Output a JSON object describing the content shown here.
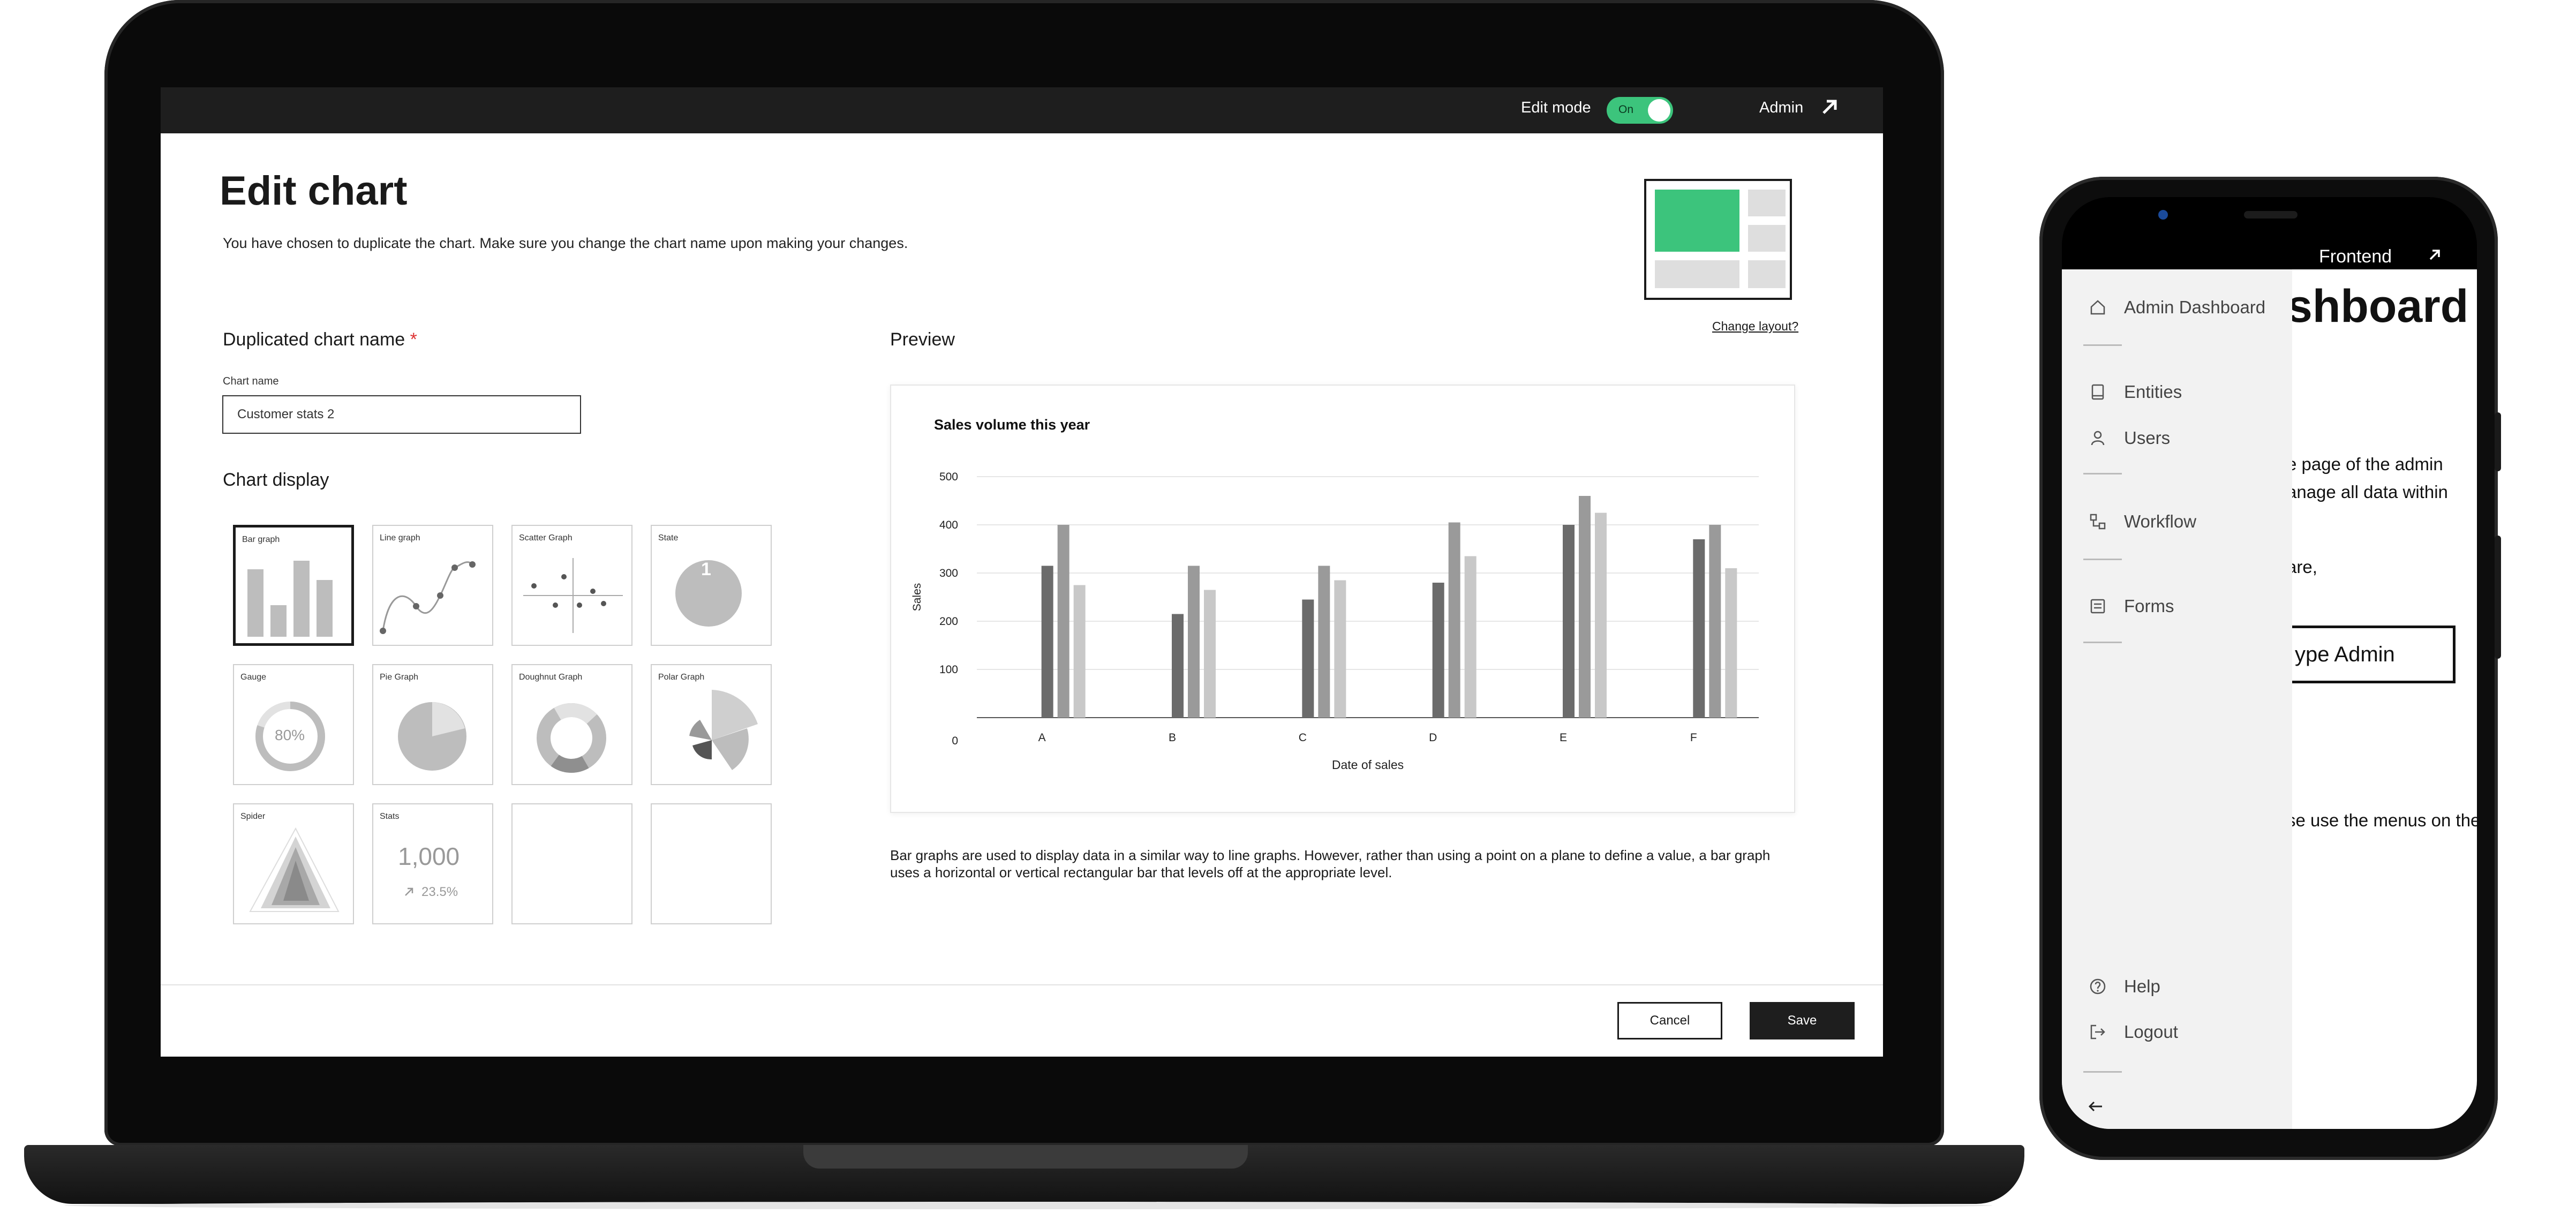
{
  "laptop": {
    "topbar": {
      "edit_mode_label": "Edit mode",
      "toggle_text": "On",
      "admin_label": "Admin"
    },
    "page_title": "Edit chart",
    "subtitle": "You have chosen to duplicate the chart. Make sure you change the chart name upon making your changes.",
    "change_layout": "Change layout?",
    "name_section": {
      "title": "Duplicated chart name",
      "required_mark": "*",
      "field_label": "Chart name",
      "value": "Customer stats 2"
    },
    "chart_display": {
      "title": "Chart display",
      "cards": [
        {
          "label": "Bar graph",
          "icon": "bar-graph-icon"
        },
        {
          "label": "Line graph",
          "icon": "line-graph-icon"
        },
        {
          "label": "Scatter Graph",
          "icon": "scatter-graph-icon"
        },
        {
          "label": "State",
          "icon": "state-icon",
          "value": "1"
        },
        {
          "label": "Gauge",
          "icon": "gauge-icon",
          "value": "80%"
        },
        {
          "label": "Pie Graph",
          "icon": "pie-graph-icon"
        },
        {
          "label": "Doughnut Graph",
          "icon": "doughnut-graph-icon"
        },
        {
          "label": "Polar Graph",
          "icon": "polar-graph-icon"
        },
        {
          "label": "Spider",
          "icon": "spider-icon"
        },
        {
          "label": "Stats",
          "icon": "stats-icon",
          "value": "1,000",
          "change": "23.5%"
        },
        {
          "label": "",
          "icon": ""
        },
        {
          "label": "",
          "icon": ""
        }
      ]
    },
    "preview": {
      "title": "Preview"
    },
    "description": "Bar graphs are used to display data in a similar way to line graphs. However, rather than using a point on a plane to define a value, a bar graph uses a horizontal or vertical rectangular bar that levels off at the appropriate level.",
    "footer": {
      "cancel": "Cancel",
      "save": "Save"
    }
  },
  "chart_data": {
    "type": "bar",
    "title": "Sales volume this year",
    "xlabel": "Date of sales",
    "ylabel": "Sales",
    "categories": [
      "A",
      "B",
      "C",
      "D",
      "E",
      "F"
    ],
    "series": [
      {
        "values": [
          315,
          215,
          245,
          280,
          400,
          370
        ],
        "color": "#6b6b6b"
      },
      {
        "values": [
          400,
          315,
          315,
          405,
          460,
          400
        ],
        "color": "#9a9a9a"
      },
      {
        "values": [
          275,
          265,
          285,
          335,
          425,
          310
        ],
        "color": "#c8c8c8"
      }
    ],
    "yticks": [
      0,
      100,
      200,
      300,
      400,
      500
    ],
    "ylim": [
      0,
      500
    ],
    "grid": true
  },
  "phone": {
    "frontend_label": "Frontend",
    "bg_title": "shboard",
    "bg_lines": [
      "e page of the admin",
      "anage all data within",
      "are,",
      "se use the menus on the"
    ],
    "bg_button": "ype Admin",
    "drawer_items": [
      {
        "label": "Admin Dashboard",
        "icon": "home-icon"
      },
      {
        "label": "Entities",
        "icon": "book-icon"
      },
      {
        "label": "Users",
        "icon": "user-icon"
      },
      {
        "label": "Workflow",
        "icon": "workflow-icon"
      },
      {
        "label": "Forms",
        "icon": "form-icon"
      },
      {
        "label": "Help",
        "icon": "help-icon"
      },
      {
        "label": "Logout",
        "icon": "logout-icon"
      }
    ]
  }
}
